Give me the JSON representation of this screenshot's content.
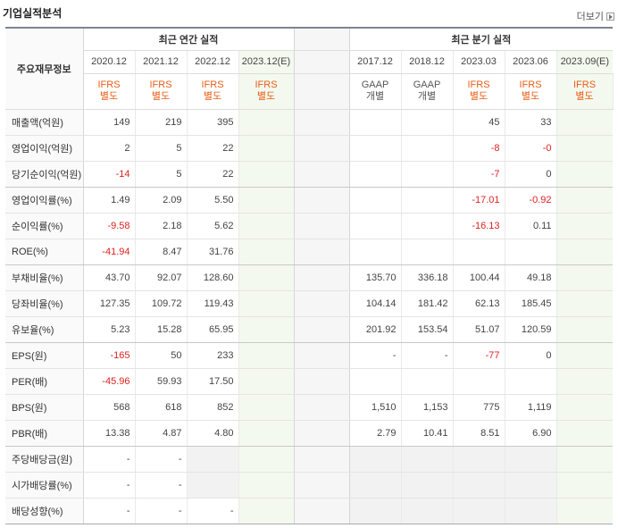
{
  "header": {
    "title": "기업실적분석",
    "more": "더보기"
  },
  "table": {
    "row_header": "주요재무정보",
    "annual_group": "최근 연간 실적",
    "quarter_group": "최근 분기 실적",
    "annual_periods": [
      "2020.12",
      "2021.12",
      "2022.12",
      "2023.12(E)"
    ],
    "quarter_periods": [
      "2017.12",
      "2018.12",
      "2023.03",
      "2023.06",
      "2023.09(E)"
    ],
    "annual_standards": [
      [
        "IFRS",
        "별도"
      ],
      [
        "IFRS",
        "별도"
      ],
      [
        "IFRS",
        "별도"
      ],
      [
        "IFRS",
        "별도"
      ]
    ],
    "quarter_standards": [
      [
        "GAAP",
        "개별"
      ],
      [
        "GAAP",
        "개별"
      ],
      [
        "IFRS",
        "별도"
      ],
      [
        "IFRS",
        "별도"
      ],
      [
        "IFRS",
        "별도"
      ]
    ],
    "rows": [
      {
        "label": "매출액(억원)",
        "annual": [
          "149",
          "219",
          "395",
          ""
        ],
        "quarter": [
          "",
          "",
          "45",
          "33",
          ""
        ]
      },
      {
        "label": "영업이익(억원)",
        "annual": [
          "2",
          "5",
          "22",
          ""
        ],
        "quarter": [
          "",
          "",
          "-8",
          "-0",
          ""
        ]
      },
      {
        "label": "당기순이익(억원)",
        "annual": [
          "-14",
          "5",
          "22",
          ""
        ],
        "quarter": [
          "",
          "",
          "-7",
          "0",
          ""
        ]
      },
      {
        "label": "영업이익률(%)",
        "annual": [
          "1.49",
          "2.09",
          "5.50",
          ""
        ],
        "quarter": [
          "",
          "",
          "-17.01",
          "-0.92",
          ""
        ]
      },
      {
        "label": "순이익률(%)",
        "annual": [
          "-9.58",
          "2.18",
          "5.62",
          ""
        ],
        "quarter": [
          "",
          "",
          "-16.13",
          "0.11",
          ""
        ]
      },
      {
        "label": "ROE(%)",
        "annual": [
          "-41.94",
          "8.47",
          "31.76",
          ""
        ],
        "quarter": [
          "",
          "",
          "",
          "",
          ""
        ]
      },
      {
        "label": "부채비율(%)",
        "annual": [
          "43.70",
          "92.07",
          "128.60",
          ""
        ],
        "quarter": [
          "135.70",
          "336.18",
          "100.44",
          "49.18",
          ""
        ]
      },
      {
        "label": "당좌비율(%)",
        "annual": [
          "127.35",
          "109.72",
          "119.43",
          ""
        ],
        "quarter": [
          "104.14",
          "181.42",
          "62.13",
          "185.45",
          ""
        ]
      },
      {
        "label": "유보율(%)",
        "annual": [
          "5.23",
          "15.28",
          "65.95",
          ""
        ],
        "quarter": [
          "201.92",
          "153.54",
          "51.07",
          "120.59",
          ""
        ]
      },
      {
        "label": "EPS(원)",
        "annual": [
          "-165",
          "50",
          "233",
          ""
        ],
        "quarter": [
          "-",
          "-",
          "-77",
          "0",
          ""
        ]
      },
      {
        "label": "PER(배)",
        "annual": [
          "-45.96",
          "59.93",
          "17.50",
          ""
        ],
        "quarter": [
          "",
          "",
          "",
          "",
          ""
        ]
      },
      {
        "label": "BPS(원)",
        "annual": [
          "568",
          "618",
          "852",
          ""
        ],
        "quarter": [
          "1,510",
          "1,153",
          "775",
          "1,119",
          ""
        ]
      },
      {
        "label": "PBR(배)",
        "annual": [
          "13.38",
          "4.87",
          "4.80",
          ""
        ],
        "quarter": [
          "2.79",
          "10.41",
          "8.51",
          "6.90",
          ""
        ]
      },
      {
        "label": "주당배당금(원)",
        "annual": [
          "-",
          "-",
          "",
          ""
        ],
        "quarter": [
          "",
          "",
          "",
          "",
          ""
        ]
      },
      {
        "label": "시가배당률(%)",
        "annual": [
          "-",
          "-",
          "",
          ""
        ],
        "quarter": [
          "",
          "",
          "",
          "",
          ""
        ]
      },
      {
        "label": "배당성향(%)",
        "annual": [
          "-",
          "-",
          "-",
          ""
        ],
        "quarter": [
          "",
          "",
          "",
          "",
          ""
        ]
      }
    ]
  }
}
